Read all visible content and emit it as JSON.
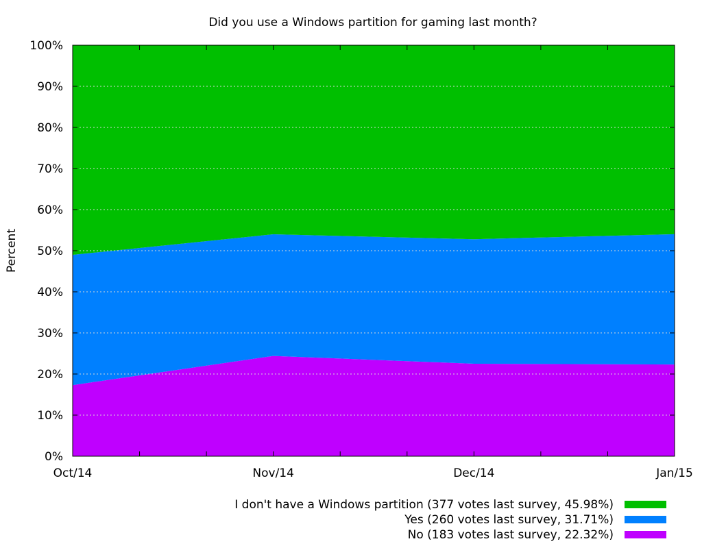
{
  "chart_data": {
    "type": "area",
    "stacked": true,
    "title": "Did you use a Windows partition for gaming last month?",
    "xlabel": "",
    "ylabel": "Percent",
    "x": [
      "Oct/14",
      "Nov/14",
      "Dec/14",
      "Jan/15"
    ],
    "ylim": [
      0,
      100
    ],
    "yticks": [
      "0%",
      "10%",
      "20%",
      "30%",
      "40%",
      "50%",
      "60%",
      "70%",
      "80%",
      "90%",
      "100%"
    ],
    "grid": true,
    "legend_position": "bottom-right",
    "series": [
      {
        "name": "No (183 votes last survey, 22.32%)",
        "color": "#bf00ff",
        "values": [
          17.3,
          24.4,
          22.5,
          22.32
        ]
      },
      {
        "name": "Yes (260 votes last survey, 31.71%)",
        "color": "#0080ff",
        "values": [
          31.7,
          29.6,
          30.3,
          31.71
        ]
      },
      {
        "name": "I don't have a Windows partition (377 votes last survey, 45.98%)",
        "color": "#00bf00",
        "values": [
          51.0,
          46.0,
          47.2,
          45.98
        ]
      }
    ],
    "legend_order": [
      2,
      1,
      0
    ]
  }
}
